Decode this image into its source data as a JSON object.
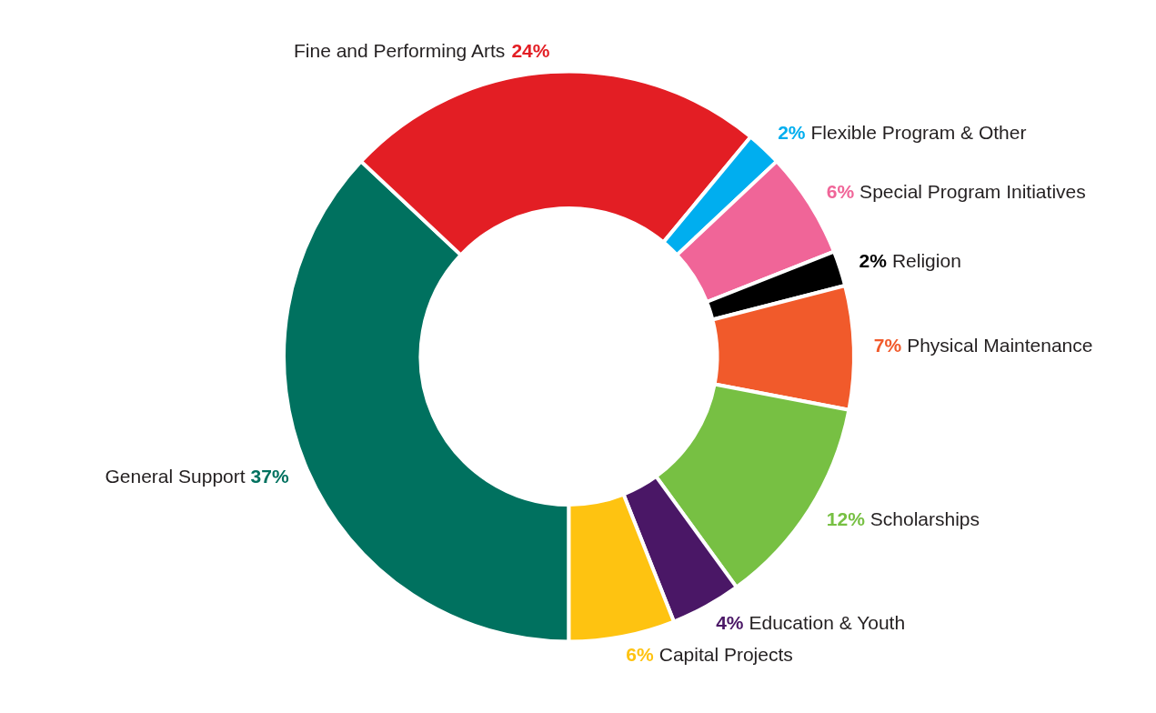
{
  "chart_data": {
    "type": "donut",
    "categories": [
      "General Support",
      "Fine and Performing Arts",
      "Flexible Program & Other",
      "Special Program Initiatives",
      "Religion",
      "Physical Maintenance",
      "Scholarships",
      "Education & Youth",
      "Capital Projects"
    ],
    "values": [
      37,
      24,
      2,
      6,
      2,
      7,
      12,
      4,
      6
    ],
    "colors": [
      "#00715f",
      "#e31e24",
      "#00aeef",
      "#f06598",
      "#000000",
      "#f15a2b",
      "#77c043",
      "#4a1766",
      "#fec311"
    ],
    "value_labels": [
      "37%",
      "24%",
      "2%",
      "6%",
      "2%",
      "7%",
      "12%",
      "4%",
      "6%"
    ],
    "legend": false
  }
}
